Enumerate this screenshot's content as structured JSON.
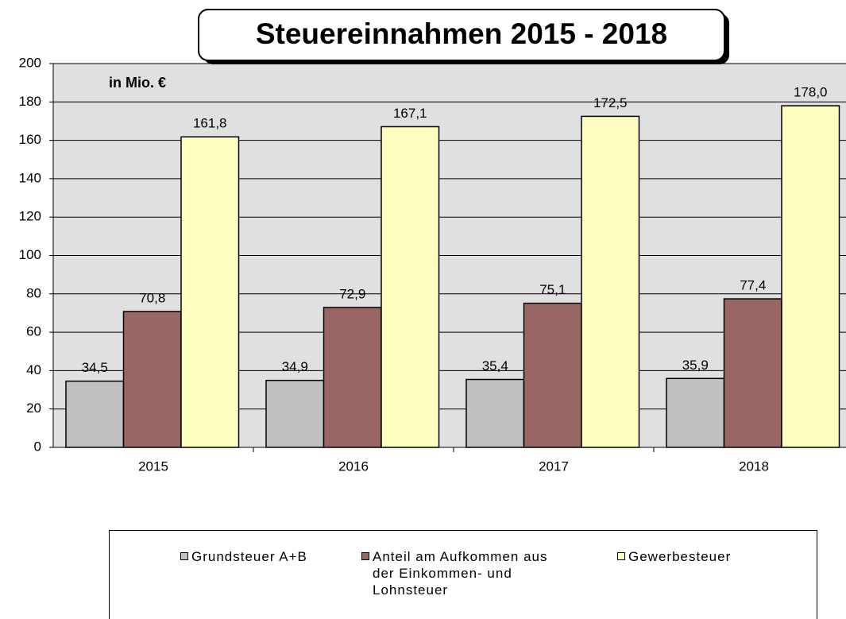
{
  "chart_data": {
    "type": "bar",
    "title": "Steuereinnahmen  2015 - 2018",
    "annotation": "in Mio. €",
    "categories": [
      "2015",
      "2016",
      "2017",
      "2018"
    ],
    "series": [
      {
        "name": "Grundsteuer A+B",
        "color": "#c0c0c0",
        "values": [
          34.5,
          34.9,
          35.4,
          35.9
        ],
        "value_labels": [
          "34,5",
          "34,9",
          "35,4",
          "35,9"
        ]
      },
      {
        "name": "Anteil am Aufkommen aus der Einkommen- und Lohnsteuer",
        "color": "#996666",
        "values": [
          70.8,
          72.9,
          75.1,
          77.4
        ],
        "value_labels": [
          "70,8",
          "72,9",
          "75,1",
          "77,4"
        ]
      },
      {
        "name": "Gewerbesteuer",
        "color": "#ffffc0",
        "values": [
          161.8,
          167.1,
          172.5,
          178.0
        ],
        "value_labels": [
          "161,8",
          "167,1",
          "172,5",
          "178,0"
        ]
      }
    ],
    "ylim": [
      0,
      200
    ],
    "yticks": [
      0,
      20,
      40,
      60,
      80,
      100,
      120,
      140,
      160,
      180,
      200
    ],
    "grid": true,
    "legend": "bottom"
  }
}
